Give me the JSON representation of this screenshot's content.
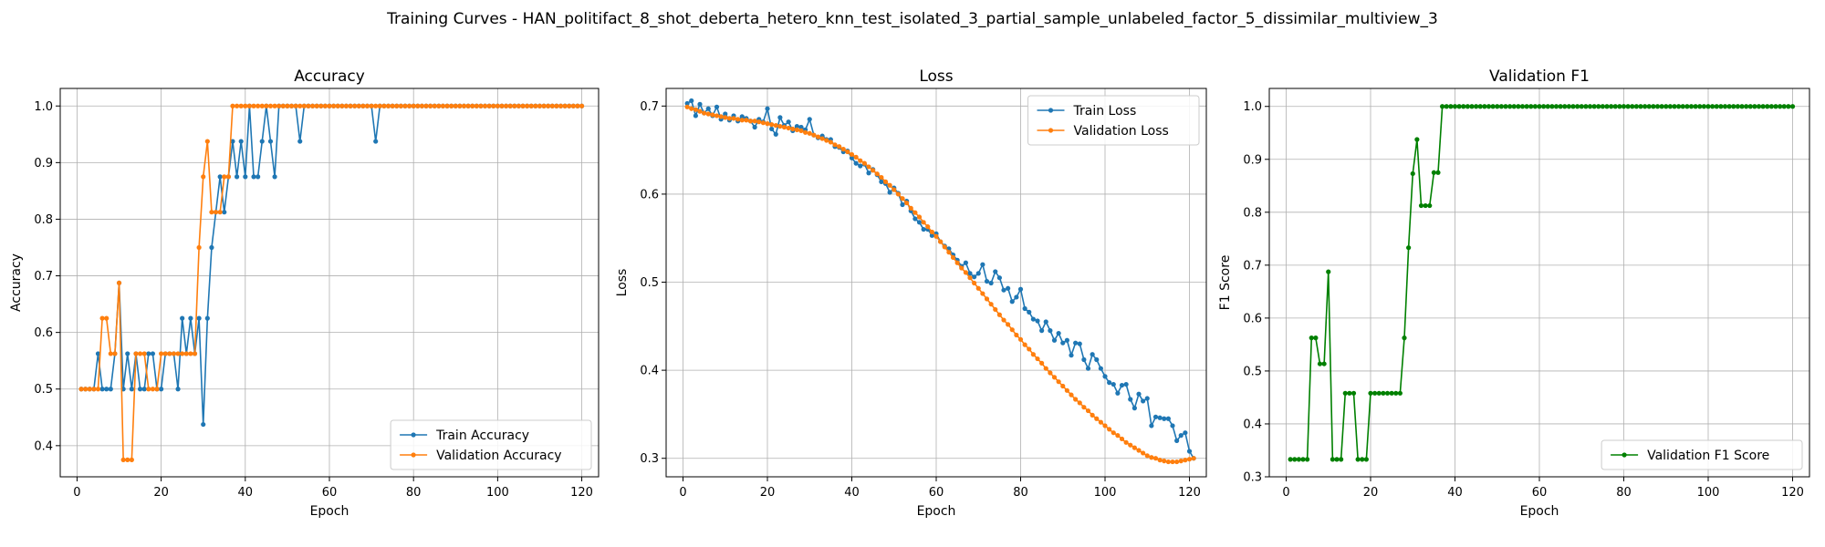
{
  "figure": {
    "suptitle": "Training Curves - HAN_politifact_8_shot_deberta_hetero_knn_test_isolated_3_partial_sample_unlabeled_factor_5_dissimilar_multiview_3"
  },
  "chart_data": [
    {
      "type": "line",
      "title": "Accuracy",
      "xlabel": "Epoch",
      "ylabel": "Accuracy",
      "xlim": [
        -4,
        124
      ],
      "ylim": [
        0.345,
        1.031
      ],
      "xticks": [
        0,
        20,
        40,
        60,
        80,
        100,
        120
      ],
      "yticks": [
        0.4,
        0.5,
        0.6,
        0.7,
        0.8,
        0.9,
        1.0
      ],
      "tick_decimals": 1,
      "grid": true,
      "legend_position": "lower-right",
      "series": [
        {
          "name": "Train Accuracy",
          "color": "#1f77b4",
          "x_start": 1,
          "values": [
            0.5,
            0.5,
            0.5,
            0.5,
            0.5625,
            0.5,
            0.5,
            0.5,
            0.5625,
            0.6875,
            0.5,
            0.5625,
            0.5,
            0.5625,
            0.5,
            0.5,
            0.5625,
            0.5625,
            0.5,
            0.5,
            0.5625,
            0.5625,
            0.5625,
            0.5,
            0.625,
            0.5625,
            0.625,
            0.5625,
            0.625,
            0.4375,
            0.625,
            0.75,
            0.8125,
            0.875,
            0.8125,
            0.875,
            0.9375,
            0.875,
            0.9375,
            0.875,
            1.0,
            0.875,
            0.875,
            0.9375,
            1.0,
            0.9375,
            0.875,
            1.0,
            1.0,
            1.0,
            1.0,
            1.0,
            0.9375,
            1.0,
            1.0,
            1.0,
            1.0,
            1.0,
            1.0,
            1.0,
            1.0,
            1.0,
            1.0,
            1.0,
            1.0,
            1.0,
            1.0,
            1.0,
            1.0,
            1.0,
            0.9375,
            1.0,
            1.0,
            1.0,
            1.0,
            1.0,
            1.0,
            1.0,
            1.0,
            1.0,
            1.0,
            1.0,
            1.0,
            1.0,
            1.0,
            1.0,
            1.0,
            1.0,
            1.0,
            1.0,
            1.0,
            1.0,
            1.0,
            1.0,
            1.0,
            1.0,
            1.0,
            1.0,
            1.0,
            1.0,
            1.0,
            1.0,
            1.0,
            1.0,
            1.0,
            1.0,
            1.0,
            1.0,
            1.0,
            1.0,
            1.0,
            1.0,
            1.0,
            1.0,
            1.0,
            1.0,
            1.0,
            1.0,
            1.0,
            1.0
          ]
        },
        {
          "name": "Validation Accuracy",
          "color": "#ff7f0e",
          "x_start": 1,
          "values": [
            0.5,
            0.5,
            0.5,
            0.5,
            0.5,
            0.625,
            0.625,
            0.5625,
            0.5625,
            0.6875,
            0.375,
            0.375,
            0.375,
            0.5625,
            0.5625,
            0.5625,
            0.5,
            0.5,
            0.5,
            0.5625,
            0.5625,
            0.5625,
            0.5625,
            0.5625,
            0.5625,
            0.5625,
            0.5625,
            0.5625,
            0.75,
            0.875,
            0.9375,
            0.8125,
            0.8125,
            0.8125,
            0.875,
            0.875,
            1.0,
            1.0,
            1.0,
            1.0,
            1.0,
            1.0,
            1.0,
            1.0,
            1.0,
            1.0,
            1.0,
            1.0,
            1.0,
            1.0,
            1.0,
            1.0,
            1.0,
            1.0,
            1.0,
            1.0,
            1.0,
            1.0,
            1.0,
            1.0,
            1.0,
            1.0,
            1.0,
            1.0,
            1.0,
            1.0,
            1.0,
            1.0,
            1.0,
            1.0,
            1.0,
            1.0,
            1.0,
            1.0,
            1.0,
            1.0,
            1.0,
            1.0,
            1.0,
            1.0,
            1.0,
            1.0,
            1.0,
            1.0,
            1.0,
            1.0,
            1.0,
            1.0,
            1.0,
            1.0,
            1.0,
            1.0,
            1.0,
            1.0,
            1.0,
            1.0,
            1.0,
            1.0,
            1.0,
            1.0,
            1.0,
            1.0,
            1.0,
            1.0,
            1.0,
            1.0,
            1.0,
            1.0,
            1.0,
            1.0,
            1.0,
            1.0,
            1.0,
            1.0,
            1.0,
            1.0,
            1.0,
            1.0,
            1.0,
            1.0
          ]
        }
      ]
    },
    {
      "type": "line",
      "title": "Loss",
      "xlabel": "Epoch",
      "ylabel": "Loss",
      "xlim": [
        -4,
        124
      ],
      "ylim": [
        0.279,
        0.72
      ],
      "xticks": [
        0,
        20,
        40,
        60,
        80,
        100,
        120
      ],
      "yticks": [
        0.3,
        0.4,
        0.5,
        0.6,
        0.7
      ],
      "tick_decimals": 1,
      "grid": true,
      "legend_position": "upper-right",
      "series": [
        {
          "name": "Train Loss",
          "color": "#1f77b4",
          "x_start": 1,
          "values": [
            0.703,
            0.706,
            0.689,
            0.702,
            0.692,
            0.697,
            0.689,
            0.699,
            0.685,
            0.691,
            0.684,
            0.689,
            0.683,
            0.688,
            0.686,
            0.683,
            0.676,
            0.685,
            0.682,
            0.697,
            0.674,
            0.668,
            0.687,
            0.678,
            0.682,
            0.672,
            0.677,
            0.676,
            0.673,
            0.685,
            0.667,
            0.664,
            0.666,
            0.662,
            0.662,
            0.654,
            0.653,
            0.648,
            0.649,
            0.641,
            0.635,
            0.632,
            0.634,
            0.624,
            0.628,
            0.622,
            0.614,
            0.612,
            0.602,
            0.607,
            0.601,
            0.588,
            0.592,
            0.581,
            0.572,
            0.568,
            0.56,
            0.56,
            0.553,
            0.555,
            0.546,
            0.541,
            0.538,
            0.531,
            0.525,
            0.518,
            0.522,
            0.51,
            0.506,
            0.51,
            0.52,
            0.501,
            0.499,
            0.512,
            0.505,
            0.491,
            0.493,
            0.478,
            0.483,
            0.492,
            0.47,
            0.466,
            0.458,
            0.456,
            0.445,
            0.455,
            0.445,
            0.434,
            0.442,
            0.431,
            0.434,
            0.417,
            0.431,
            0.43,
            0.412,
            0.402,
            0.418,
            0.412,
            0.402,
            0.393,
            0.386,
            0.384,
            0.374,
            0.383,
            0.384,
            0.367,
            0.357,
            0.373,
            0.365,
            0.368,
            0.337,
            0.347,
            0.346,
            0.345,
            0.345,
            0.337,
            0.32,
            0.326,
            0.329,
            0.308,
            0.3
          ]
        },
        {
          "name": "Validation Loss",
          "color": "#ff7f0e",
          "x_start": 1,
          "values": [
            0.699,
            0.697,
            0.696,
            0.694,
            0.692,
            0.691,
            0.69,
            0.689,
            0.688,
            0.687,
            0.686,
            0.686,
            0.685,
            0.684,
            0.684,
            0.683,
            0.683,
            0.682,
            0.681,
            0.68,
            0.679,
            0.678,
            0.677,
            0.676,
            0.675,
            0.674,
            0.673,
            0.672,
            0.67,
            0.669,
            0.667,
            0.665,
            0.663,
            0.661,
            0.659,
            0.656,
            0.654,
            0.651,
            0.648,
            0.645,
            0.642,
            0.638,
            0.635,
            0.631,
            0.627,
            0.623,
            0.619,
            0.614,
            0.61,
            0.605,
            0.6,
            0.595,
            0.59,
            0.584,
            0.579,
            0.574,
            0.568,
            0.563,
            0.557,
            0.552,
            0.546,
            0.54,
            0.534,
            0.528,
            0.522,
            0.516,
            0.511,
            0.505,
            0.499,
            0.493,
            0.487,
            0.481,
            0.475,
            0.469,
            0.463,
            0.457,
            0.452,
            0.446,
            0.44,
            0.435,
            0.429,
            0.424,
            0.418,
            0.413,
            0.408,
            0.402,
            0.397,
            0.392,
            0.387,
            0.382,
            0.377,
            0.372,
            0.367,
            0.363,
            0.358,
            0.354,
            0.349,
            0.345,
            0.341,
            0.337,
            0.333,
            0.329,
            0.326,
            0.322,
            0.318,
            0.315,
            0.312,
            0.309,
            0.306,
            0.303,
            0.301,
            0.3,
            0.298,
            0.297,
            0.296,
            0.296,
            0.296,
            0.297,
            0.298,
            0.299,
            0.3
          ]
        }
      ]
    },
    {
      "type": "line",
      "title": "Validation F1",
      "xlabel": "Epoch",
      "ylabel": "F1 Score",
      "xlim": [
        -4,
        124
      ],
      "ylim": [
        0.3,
        1.034
      ],
      "xticks": [
        0,
        20,
        40,
        60,
        80,
        100,
        120
      ],
      "yticks": [
        0.3,
        0.4,
        0.5,
        0.6,
        0.7,
        0.8,
        0.9,
        1.0
      ],
      "tick_decimals": 1,
      "grid": true,
      "legend_position": "lower-right",
      "series": [
        {
          "name": "Validation F1 Score",
          "color": "#008000",
          "x_start": 1,
          "values": [
            0.333,
            0.333,
            0.333,
            0.333,
            0.333,
            0.5625,
            0.5625,
            0.5135,
            0.5135,
            0.6875,
            0.333,
            0.333,
            0.333,
            0.458,
            0.458,
            0.458,
            0.333,
            0.333,
            0.333,
            0.458,
            0.458,
            0.458,
            0.458,
            0.458,
            0.458,
            0.458,
            0.458,
            0.5625,
            0.733,
            0.873,
            0.9375,
            0.8125,
            0.8125,
            0.8125,
            0.875,
            0.875,
            1.0,
            1.0,
            1.0,
            1.0,
            1.0,
            1.0,
            1.0,
            1.0,
            1.0,
            1.0,
            1.0,
            1.0,
            1.0,
            1.0,
            1.0,
            1.0,
            1.0,
            1.0,
            1.0,
            1.0,
            1.0,
            1.0,
            1.0,
            1.0,
            1.0,
            1.0,
            1.0,
            1.0,
            1.0,
            1.0,
            1.0,
            1.0,
            1.0,
            1.0,
            1.0,
            1.0,
            1.0,
            1.0,
            1.0,
            1.0,
            1.0,
            1.0,
            1.0,
            1.0,
            1.0,
            1.0,
            1.0,
            1.0,
            1.0,
            1.0,
            1.0,
            1.0,
            1.0,
            1.0,
            1.0,
            1.0,
            1.0,
            1.0,
            1.0,
            1.0,
            1.0,
            1.0,
            1.0,
            1.0,
            1.0,
            1.0,
            1.0,
            1.0,
            1.0,
            1.0,
            1.0,
            1.0,
            1.0,
            1.0,
            1.0,
            1.0,
            1.0,
            1.0,
            1.0,
            1.0,
            1.0,
            1.0,
            1.0,
            1.0
          ]
        }
      ]
    }
  ]
}
